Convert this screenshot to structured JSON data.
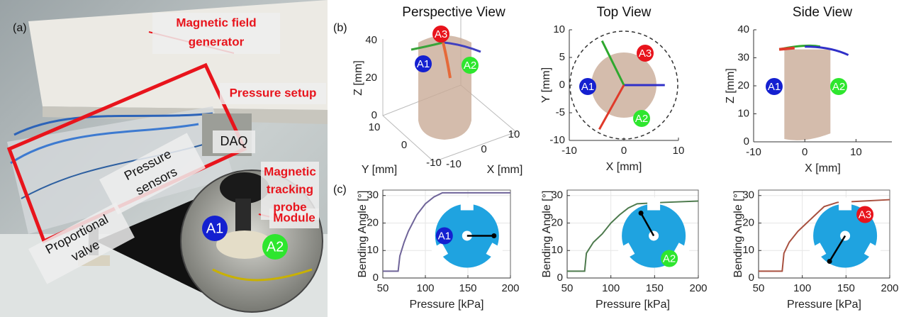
{
  "panel_labels": [
    "(a)",
    "(b)",
    "(c)"
  ],
  "photo": {
    "annotations": [
      {
        "lines": [
          "Magnetic field",
          "generator"
        ]
      },
      {
        "lines": [
          "Pressure setup"
        ]
      },
      {
        "lines": [
          "DAQ"
        ]
      },
      {
        "lines": [
          "Magnetic",
          "tracking",
          "probe"
        ]
      },
      {
        "lines": [
          "Module"
        ]
      },
      {
        "lines": [
          "Proportional",
          "valve"
        ]
      },
      {
        "lines": [
          "Pressure",
          "sensors"
        ]
      }
    ],
    "markers": [
      "A1",
      "A2"
    ]
  },
  "chart_data": [
    {
      "type": "perspective",
      "title": "Perspective View",
      "xlabel": "X [mm]",
      "ylabel": "Y [mm]",
      "zlabel": "Z [mm]",
      "xlim": [
        -10,
        10
      ],
      "ylim": [
        -10,
        10
      ],
      "zlim": [
        0,
        40
      ],
      "xticks": [
        -10,
        0,
        10
      ],
      "yticks": [
        10,
        0,
        -10
      ],
      "zticks": [
        0,
        20,
        40
      ],
      "markers": [
        "A1",
        "A2",
        "A3"
      ]
    },
    {
      "type": "topview",
      "title": "Top View",
      "xlabel": "X [mm]",
      "ylabel": "Y [mm]",
      "xlim": [
        -10,
        10
      ],
      "ylim": [
        -10,
        10
      ],
      "xticks": [
        -10,
        0,
        10
      ],
      "yticks": [
        -10,
        -5,
        0,
        5,
        10
      ],
      "markers": [
        "A1",
        "A2",
        "A3"
      ]
    },
    {
      "type": "sideview",
      "title": "Side View",
      "xlabel": "X [mm]",
      "ylabel": "Z [mm]",
      "xlim": [
        -10,
        17
      ],
      "ylim": [
        0,
        40
      ],
      "xticks": [
        -10,
        0,
        10
      ],
      "yticks": [
        0,
        10,
        20,
        30,
        40
      ],
      "markers": [
        "A1",
        "A2"
      ]
    },
    {
      "type": "line",
      "xlabel": "Pressure [kPa]",
      "ylabel": "Bending Angle [°]",
      "xlim": [
        50,
        200
      ],
      "ylim": [
        0,
        32
      ],
      "xticks": [
        50,
        100,
        150,
        200
      ],
      "yticks": [
        0,
        10,
        20,
        30
      ],
      "grid": true,
      "color": "#6f6499",
      "x": [
        50,
        60,
        68,
        70,
        75,
        80,
        90,
        100,
        110,
        120,
        150,
        200
      ],
      "values": [
        2.5,
        2.5,
        2.5,
        8,
        13,
        17,
        23,
        27,
        29.5,
        31,
        31,
        31
      ],
      "inset": "A1"
    },
    {
      "type": "line",
      "xlabel": "Pressure [kPa]",
      "ylabel": "Bending Angle [°]",
      "xlim": [
        50,
        200
      ],
      "ylim": [
        0,
        32
      ],
      "xticks": [
        50,
        100,
        150,
        200
      ],
      "yticks": [
        0,
        10,
        20,
        30
      ],
      "grid": true,
      "color": "#4d7a4d",
      "x": [
        50,
        60,
        70,
        72,
        80,
        90,
        100,
        110,
        120,
        130,
        160,
        200
      ],
      "values": [
        2.5,
        2.5,
        2.5,
        9,
        13,
        16,
        20,
        23,
        25.5,
        27,
        27.5,
        28
      ],
      "inset": "A2"
    },
    {
      "type": "line",
      "xlabel": "Pressure [kPa]",
      "ylabel": "Bending Angle [°]",
      "xlim": [
        50,
        200
      ],
      "ylim": [
        0,
        32
      ],
      "xticks": [
        50,
        100,
        150,
        200
      ],
      "yticks": [
        0,
        10,
        20,
        30
      ],
      "grid": true,
      "color": "#a8503f",
      "x": [
        50,
        60,
        77,
        79,
        85,
        95,
        105,
        115,
        125,
        140,
        170,
        200
      ],
      "values": [
        2.5,
        2.5,
        2.5,
        9,
        13,
        17,
        20,
        23,
        26,
        27.5,
        28,
        28.5
      ],
      "inset": "A3"
    }
  ]
}
